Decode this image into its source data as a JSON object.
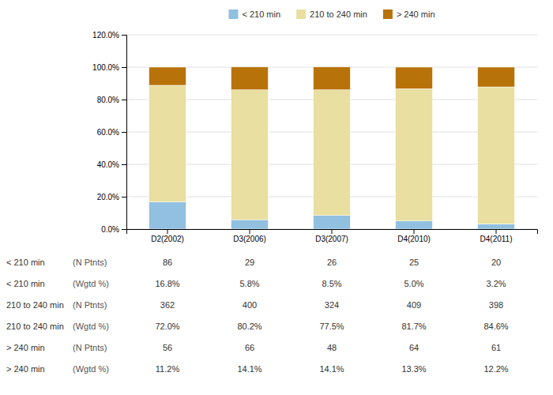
{
  "chart_data": {
    "type": "bar",
    "stacked": true,
    "categories": [
      "D2(2002)",
      "D3(2006)",
      "D3(2007)",
      "D4(2010)",
      "D4(2011)"
    ],
    "series": [
      {
        "name": "< 210 min",
        "color": "#92c0e0",
        "values": [
          16.8,
          5.8,
          8.5,
          5.0,
          3.2
        ]
      },
      {
        "name": "210 to 240 min",
        "color": "#e8dfa0",
        "values": [
          72.0,
          80.2,
          77.5,
          81.7,
          84.6
        ]
      },
      {
        "name": "> 240 min",
        "color": "#b8720a",
        "values": [
          11.2,
          14.1,
          14.1,
          13.3,
          12.2
        ]
      }
    ],
    "ylim": [
      0,
      120
    ],
    "yticks": [
      {
        "value": 0,
        "label": "0.0%"
      },
      {
        "value": 20,
        "label": "20.0%"
      },
      {
        "value": 40,
        "label": "40.0%"
      },
      {
        "value": 60,
        "label": "60.0%"
      },
      {
        "value": 80,
        "label": "80.0%"
      },
      {
        "value": 100,
        "label": "100.0%"
      },
      {
        "value": 120,
        "label": "120.0%"
      }
    ],
    "grid": true,
    "legend": "top",
    "table": {
      "rows": [
        {
          "label": "< 210 min",
          "sublabel": "(N Ptnts)",
          "values": [
            "86",
            "29",
            "26",
            "25",
            "20"
          ]
        },
        {
          "label": "< 210 min",
          "sublabel": "(Wgtd %)",
          "values": [
            "16.8%",
            "5.8%",
            "8.5%",
            "5.0%",
            "3.2%"
          ]
        },
        {
          "label": "210 to 240 min",
          "sublabel": "(N Ptnts)",
          "values": [
            "362",
            "400",
            "324",
            "409",
            "398"
          ]
        },
        {
          "label": "210 to 240 min",
          "sublabel": "(Wgtd %)",
          "values": [
            "72.0%",
            "80.2%",
            "77.5%",
            "81.7%",
            "84.6%"
          ]
        },
        {
          "label": "> 240 min",
          "sublabel": "(N Ptnts)",
          "values": [
            "56",
            "66",
            "48",
            "64",
            "61"
          ]
        },
        {
          "label": "> 240 min",
          "sublabel": "(Wgtd %)",
          "values": [
            "11.2%",
            "14.1%",
            "14.1%",
            "13.3%",
            "12.2%"
          ]
        }
      ]
    }
  }
}
